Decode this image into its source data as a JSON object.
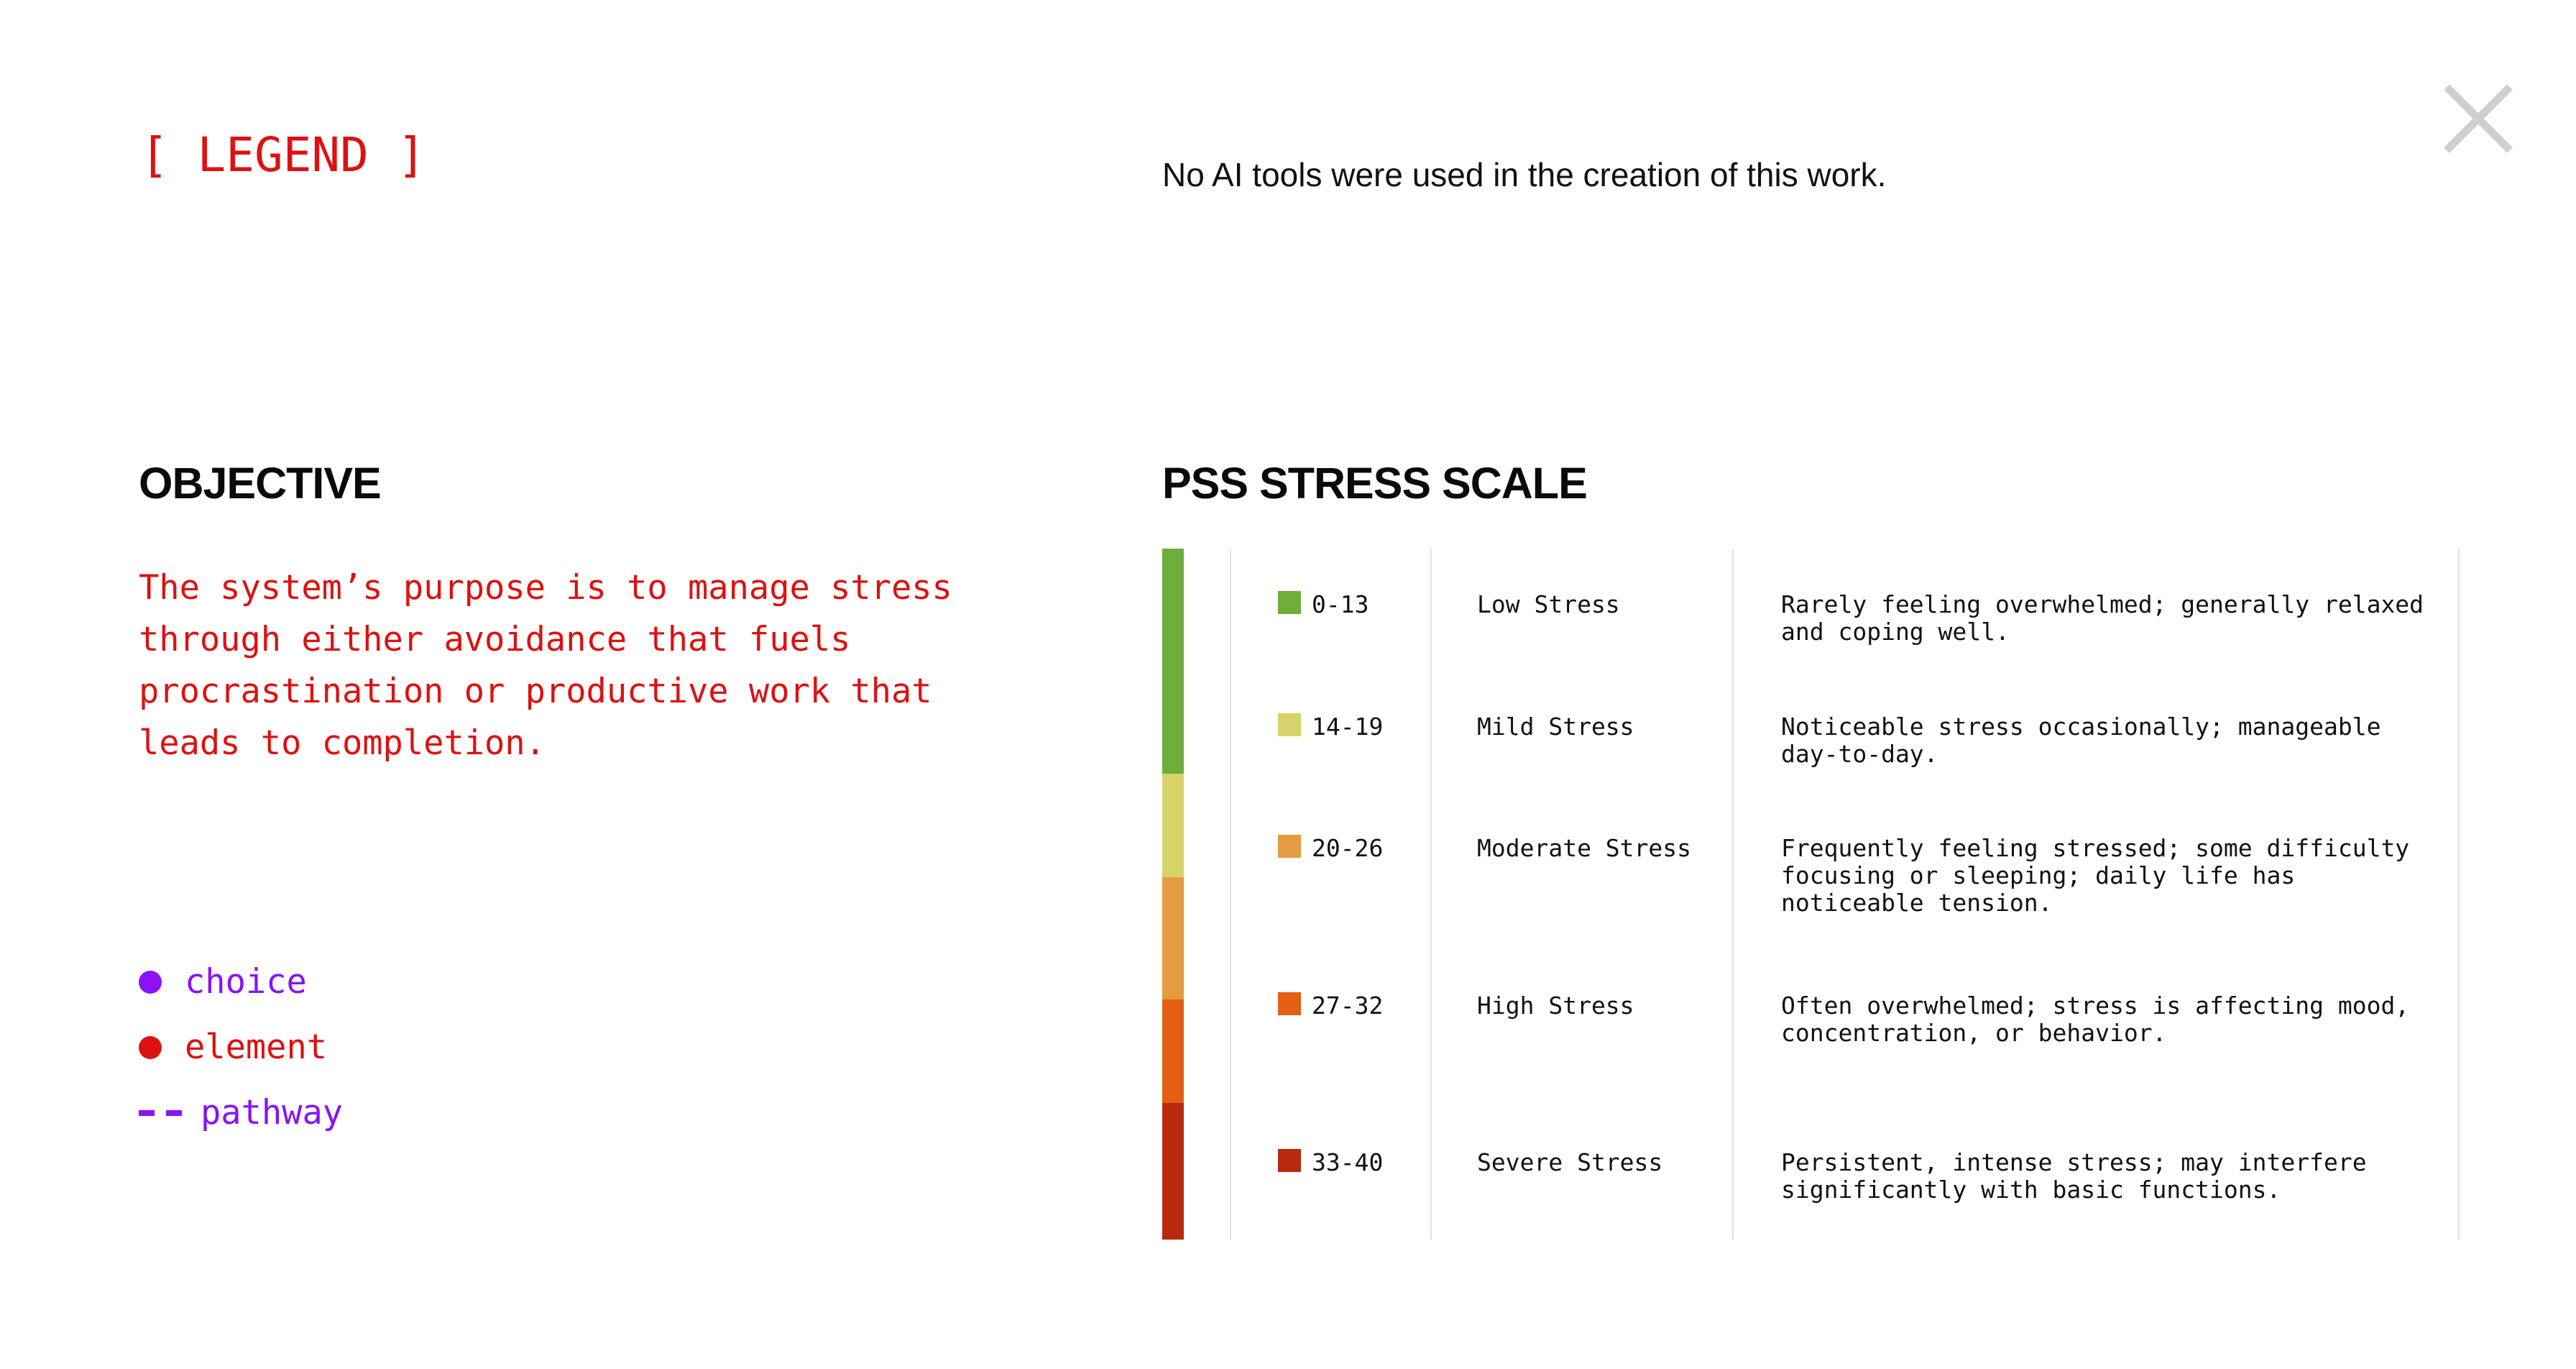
{
  "legend_title": "[ LEGEND ]",
  "ai_note": "No AI tools were used in the creation of this work.",
  "close": {
    "icon": "close-icon",
    "color": "#cfcfcf"
  },
  "objective": {
    "heading": "OBJECTIVE",
    "text": "The system’s purpose is to manage stress through either avoidance that fuels procrastination or productive work that leads to completion."
  },
  "legend": {
    "items": [
      {
        "type": "dot",
        "label": "choice",
        "color": "#8a12f5"
      },
      {
        "type": "dot",
        "label": "element",
        "color": "#dd1111"
      },
      {
        "type": "dash",
        "label": "pathway",
        "color": "#8a12f5"
      }
    ]
  },
  "pss": {
    "heading": "PSS STRESS SCALE",
    "bar_segments": [
      {
        "color": "#6cae39",
        "fraction": 0.325
      },
      {
        "color": "#d8d26b",
        "fraction": 0.15
      },
      {
        "color": "#e49b42",
        "fraction": 0.177
      },
      {
        "color": "#e35f13",
        "fraction": 0.15
      },
      {
        "color": "#b82a0e",
        "fraction": 0.198
      }
    ],
    "rows": [
      {
        "range": "0-13",
        "level": "Low Stress",
        "desc": "Rarely feeling overwhelmed; generally relaxed and coping well.",
        "color": "#6cae39"
      },
      {
        "range": "14-19",
        "level": "Mild Stress",
        "desc": "Noticeable stress occasionally; manageable day-to-day.",
        "color": "#d8d26b"
      },
      {
        "range": "20-26",
        "level": "Moderate Stress",
        "desc": "Frequently feeling stressed; some difficulty focusing or sleeping; daily life has noticeable tension.",
        "color": "#e49b42"
      },
      {
        "range": "27-32",
        "level": "High Stress",
        "desc": "Often overwhelmed; stress is affecting mood, concentration, or behavior.",
        "color": "#e35f13"
      },
      {
        "range": "33-40",
        "level": "Severe Stress",
        "desc": "Persistent, intense stress; may interfere significantly with basic functions.",
        "color": "#b82a0e"
      }
    ]
  }
}
